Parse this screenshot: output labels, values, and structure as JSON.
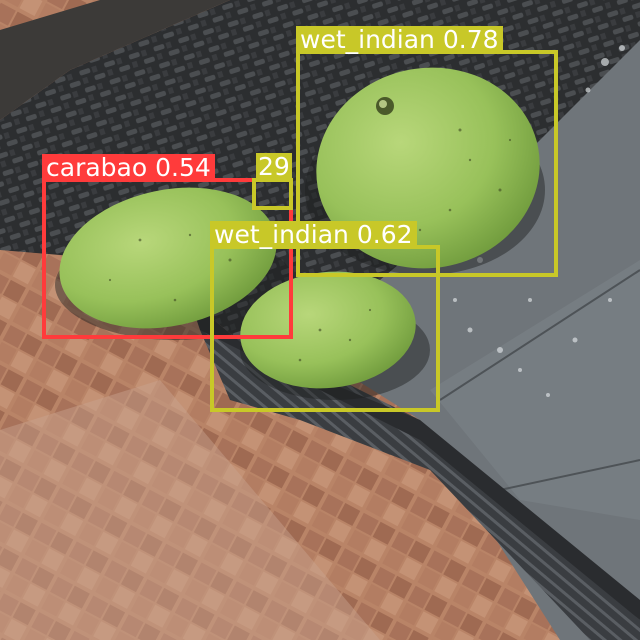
{
  "image": {
    "content": "three green mangoes on a dark woven rattan surface, partly on a wet grey tile, over a terracotta tiled floor"
  },
  "detections": [
    {
      "class": "carabao",
      "score": "0.54",
      "color": "#ff3b3b"
    },
    {
      "class": "",
      "score": "0.29",
      "color": "#c8c828"
    },
    {
      "class": "wet_indian",
      "score": "0.78",
      "color": "#c8c828"
    },
    {
      "class": "wet_indian",
      "score": "0.62",
      "color": "#c8c828"
    }
  ],
  "labels": {
    "d0": "carabao 0.54",
    "d1": "29",
    "d2": "wet_indian 0.78",
    "d3": "wet_indian 0.62"
  }
}
